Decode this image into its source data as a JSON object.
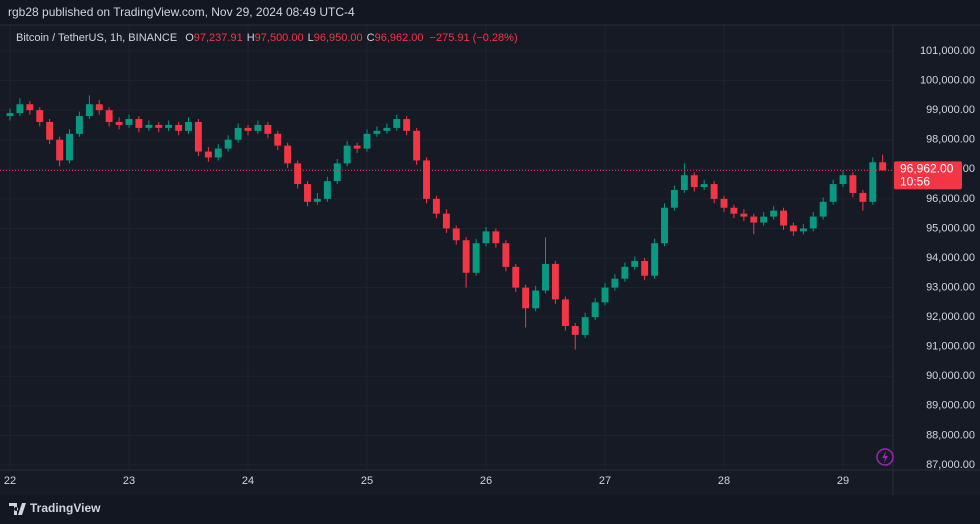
{
  "header": {
    "published": "rgb28 published on TradingView.com, Nov 29, 2024 08:49 UTC-4"
  },
  "chart_data": {
    "type": "candlestick",
    "symbol": "Bitcoin / TetherUS, 1h, BINANCE",
    "legend": [
      {
        "key": "O",
        "value": "97,237.91"
      },
      {
        "key": "H",
        "value": "97,500.00"
      },
      {
        "key": "L",
        "value": "96,950.00"
      },
      {
        "key": "C",
        "value": "96,962.00"
      }
    ],
    "change": "−275.91 (−0.28%)",
    "up_color": "#089981",
    "down_color": "#f23645",
    "grid": true,
    "x": [
      22,
      22.083,
      22.167,
      22.25,
      22.333,
      22.417,
      22.5,
      22.583,
      22.667,
      22.75,
      22.833,
      22.917,
      23,
      23.083,
      23.167,
      23.25,
      23.333,
      23.417,
      23.5,
      23.583,
      23.667,
      23.75,
      23.833,
      23.917,
      24,
      24.083,
      24.167,
      24.25,
      24.333,
      24.417,
      24.5,
      24.583,
      24.667,
      24.75,
      24.833,
      24.917,
      25,
      25.083,
      25.167,
      25.25,
      25.333,
      25.417,
      25.5,
      25.583,
      25.667,
      25.75,
      25.833,
      25.917,
      26,
      26.083,
      26.167,
      26.25,
      26.333,
      26.417,
      26.5,
      26.583,
      26.667,
      26.75,
      26.833,
      26.917,
      27,
      27.083,
      27.167,
      27.25,
      27.333,
      27.417,
      27.5,
      27.583,
      27.667,
      27.75,
      27.833,
      27.917,
      28,
      28.083,
      28.167,
      28.25,
      28.333,
      28.417,
      28.5,
      28.583,
      28.667,
      28.75,
      28.833,
      28.917,
      29,
      29.083,
      29.167,
      29.25,
      29.333
    ],
    "ohlc": [
      [
        98800,
        99050,
        98650,
        98900
      ],
      [
        98900,
        99400,
        98800,
        99200
      ],
      [
        99200,
        99300,
        98850,
        99000
      ],
      [
        99000,
        99100,
        98450,
        98600
      ],
      [
        98600,
        98700,
        97850,
        98000
      ],
      [
        98000,
        98100,
        97100,
        97300
      ],
      [
        97300,
        98350,
        97200,
        98200
      ],
      [
        98200,
        98950,
        98100,
        98800
      ],
      [
        98800,
        99500,
        98700,
        99200
      ],
      [
        99200,
        99350,
        98850,
        99000
      ],
      [
        99000,
        99100,
        98450,
        98600
      ],
      [
        98600,
        98750,
        98350,
        98500
      ],
      [
        98500,
        98850,
        98400,
        98700
      ],
      [
        98700,
        98800,
        98250,
        98400
      ],
      [
        98400,
        98650,
        98300,
        98500
      ],
      [
        98500,
        98600,
        98250,
        98400
      ],
      [
        98400,
        98650,
        98300,
        98500
      ],
      [
        98500,
        98600,
        98150,
        98300
      ],
      [
        98300,
        98750,
        98200,
        98600
      ],
      [
        98600,
        98700,
        97450,
        97600
      ],
      [
        97600,
        97750,
        97250,
        97400
      ],
      [
        97400,
        97850,
        97300,
        97700
      ],
      [
        97700,
        98150,
        97600,
        98000
      ],
      [
        98000,
        98550,
        97900,
        98400
      ],
      [
        98400,
        98500,
        98150,
        98300
      ],
      [
        98300,
        98650,
        98200,
        98500
      ],
      [
        98500,
        98600,
        98050,
        98200
      ],
      [
        98200,
        98300,
        97650,
        97800
      ],
      [
        97800,
        97900,
        97050,
        97200
      ],
      [
        97200,
        97300,
        96350,
        96500
      ],
      [
        96500,
        96600,
        95750,
        95900
      ],
      [
        95900,
        96200,
        95800,
        96000
      ],
      [
        96000,
        96750,
        95900,
        96600
      ],
      [
        96600,
        97350,
        96500,
        97200
      ],
      [
        97200,
        97950,
        97100,
        97800
      ],
      [
        97800,
        97900,
        97550,
        97700
      ],
      [
        97700,
        98350,
        97600,
        98200
      ],
      [
        98200,
        98450,
        98100,
        98300
      ],
      [
        98300,
        98550,
        98200,
        98400
      ],
      [
        98400,
        98850,
        98300,
        98700
      ],
      [
        98700,
        98800,
        98150,
        98300
      ],
      [
        98300,
        98400,
        97150,
        97300
      ],
      [
        97300,
        97400,
        95850,
        96000
      ],
      [
        96000,
        96100,
        95350,
        95500
      ],
      [
        95500,
        95650,
        94850,
        95000
      ],
      [
        95000,
        95100,
        94450,
        94600
      ],
      [
        94600,
        94700,
        93000,
        93500
      ],
      [
        93500,
        94650,
        93400,
        94500
      ],
      [
        94500,
        95050,
        94400,
        94900
      ],
      [
        94900,
        95000,
        94350,
        94500
      ],
      [
        94500,
        94600,
        93550,
        93700
      ],
      [
        93700,
        93800,
        92850,
        93000
      ],
      [
        93000,
        93100,
        91650,
        92300
      ],
      [
        92300,
        93050,
        92200,
        92900
      ],
      [
        92900,
        94700,
        92800,
        93800
      ],
      [
        93800,
        93900,
        92450,
        92600
      ],
      [
        92600,
        92700,
        91550,
        91700
      ],
      [
        91700,
        91800,
        90900,
        91400
      ],
      [
        91400,
        92150,
        91300,
        92000
      ],
      [
        92000,
        92650,
        91900,
        92500
      ],
      [
        92500,
        93150,
        92400,
        93000
      ],
      [
        93000,
        93450,
        92900,
        93300
      ],
      [
        93300,
        93850,
        93200,
        93700
      ],
      [
        93700,
        94050,
        93600,
        93900
      ],
      [
        93900,
        94000,
        93250,
        93400
      ],
      [
        93400,
        94650,
        93300,
        94500
      ],
      [
        94500,
        95850,
        94400,
        95700
      ],
      [
        95700,
        96450,
        95600,
        96300
      ],
      [
        96300,
        97200,
        96200,
        96800
      ],
      [
        96800,
        96900,
        96250,
        96400
      ],
      [
        96400,
        96650,
        96300,
        96500
      ],
      [
        96500,
        96600,
        95850,
        96000
      ],
      [
        96000,
        96100,
        95550,
        95700
      ],
      [
        95700,
        95800,
        95350,
        95500
      ],
      [
        95500,
        95650,
        95250,
        95400
      ],
      [
        95400,
        95500,
        94800,
        95200
      ],
      [
        95200,
        95550,
        95100,
        95400
      ],
      [
        95400,
        95750,
        95300,
        95600
      ],
      [
        95600,
        95700,
        94950,
        95100
      ],
      [
        95100,
        95200,
        94750,
        94900
      ],
      [
        94900,
        95150,
        94800,
        95000
      ],
      [
        95000,
        95550,
        94900,
        95400
      ],
      [
        95400,
        96050,
        95300,
        95900
      ],
      [
        95900,
        96650,
        95800,
        96500
      ],
      [
        96500,
        96950,
        96400,
        96800
      ],
      [
        96800,
        96900,
        96050,
        96200
      ],
      [
        96200,
        96300,
        95600,
        95900
      ],
      [
        95900,
        97400,
        95800,
        97237.91
      ],
      [
        97237.91,
        97500,
        96950,
        96962
      ]
    ],
    "xlim": [
      21.916,
      29.42
    ],
    "xticks": [
      22,
      23,
      24,
      25,
      26,
      27,
      28,
      29
    ],
    "ylim": [
      86830,
      101880
    ],
    "yticks": [
      {
        "value": 87000,
        "label": "87,000.00"
      },
      {
        "value": 88000,
        "label": "88,000.00"
      },
      {
        "value": 89000,
        "label": "89,000.00"
      },
      {
        "value": 90000,
        "label": "90,000.00"
      },
      {
        "value": 91000,
        "label": "91,000.00"
      },
      {
        "value": 92000,
        "label": "92,000.00"
      },
      {
        "value": 93000,
        "label": "93,000.00"
      },
      {
        "value": 94000,
        "label": "94,000.00"
      },
      {
        "value": 95000,
        "label": "95,000.00"
      },
      {
        "value": 96000,
        "label": "96,000.00"
      },
      {
        "value": 97000,
        "label": "97,000.00"
      },
      {
        "value": 98000,
        "label": "98,000.00"
      },
      {
        "value": 99000,
        "label": "99,000.00"
      },
      {
        "value": 100000,
        "label": "100,000.00"
      },
      {
        "value": 101000,
        "label": "101,000.00"
      }
    ],
    "last_price": {
      "value": 96962,
      "label": "96,962.00"
    },
    "countdown": "10:56"
  },
  "footer": {
    "brand": "TradingView"
  }
}
